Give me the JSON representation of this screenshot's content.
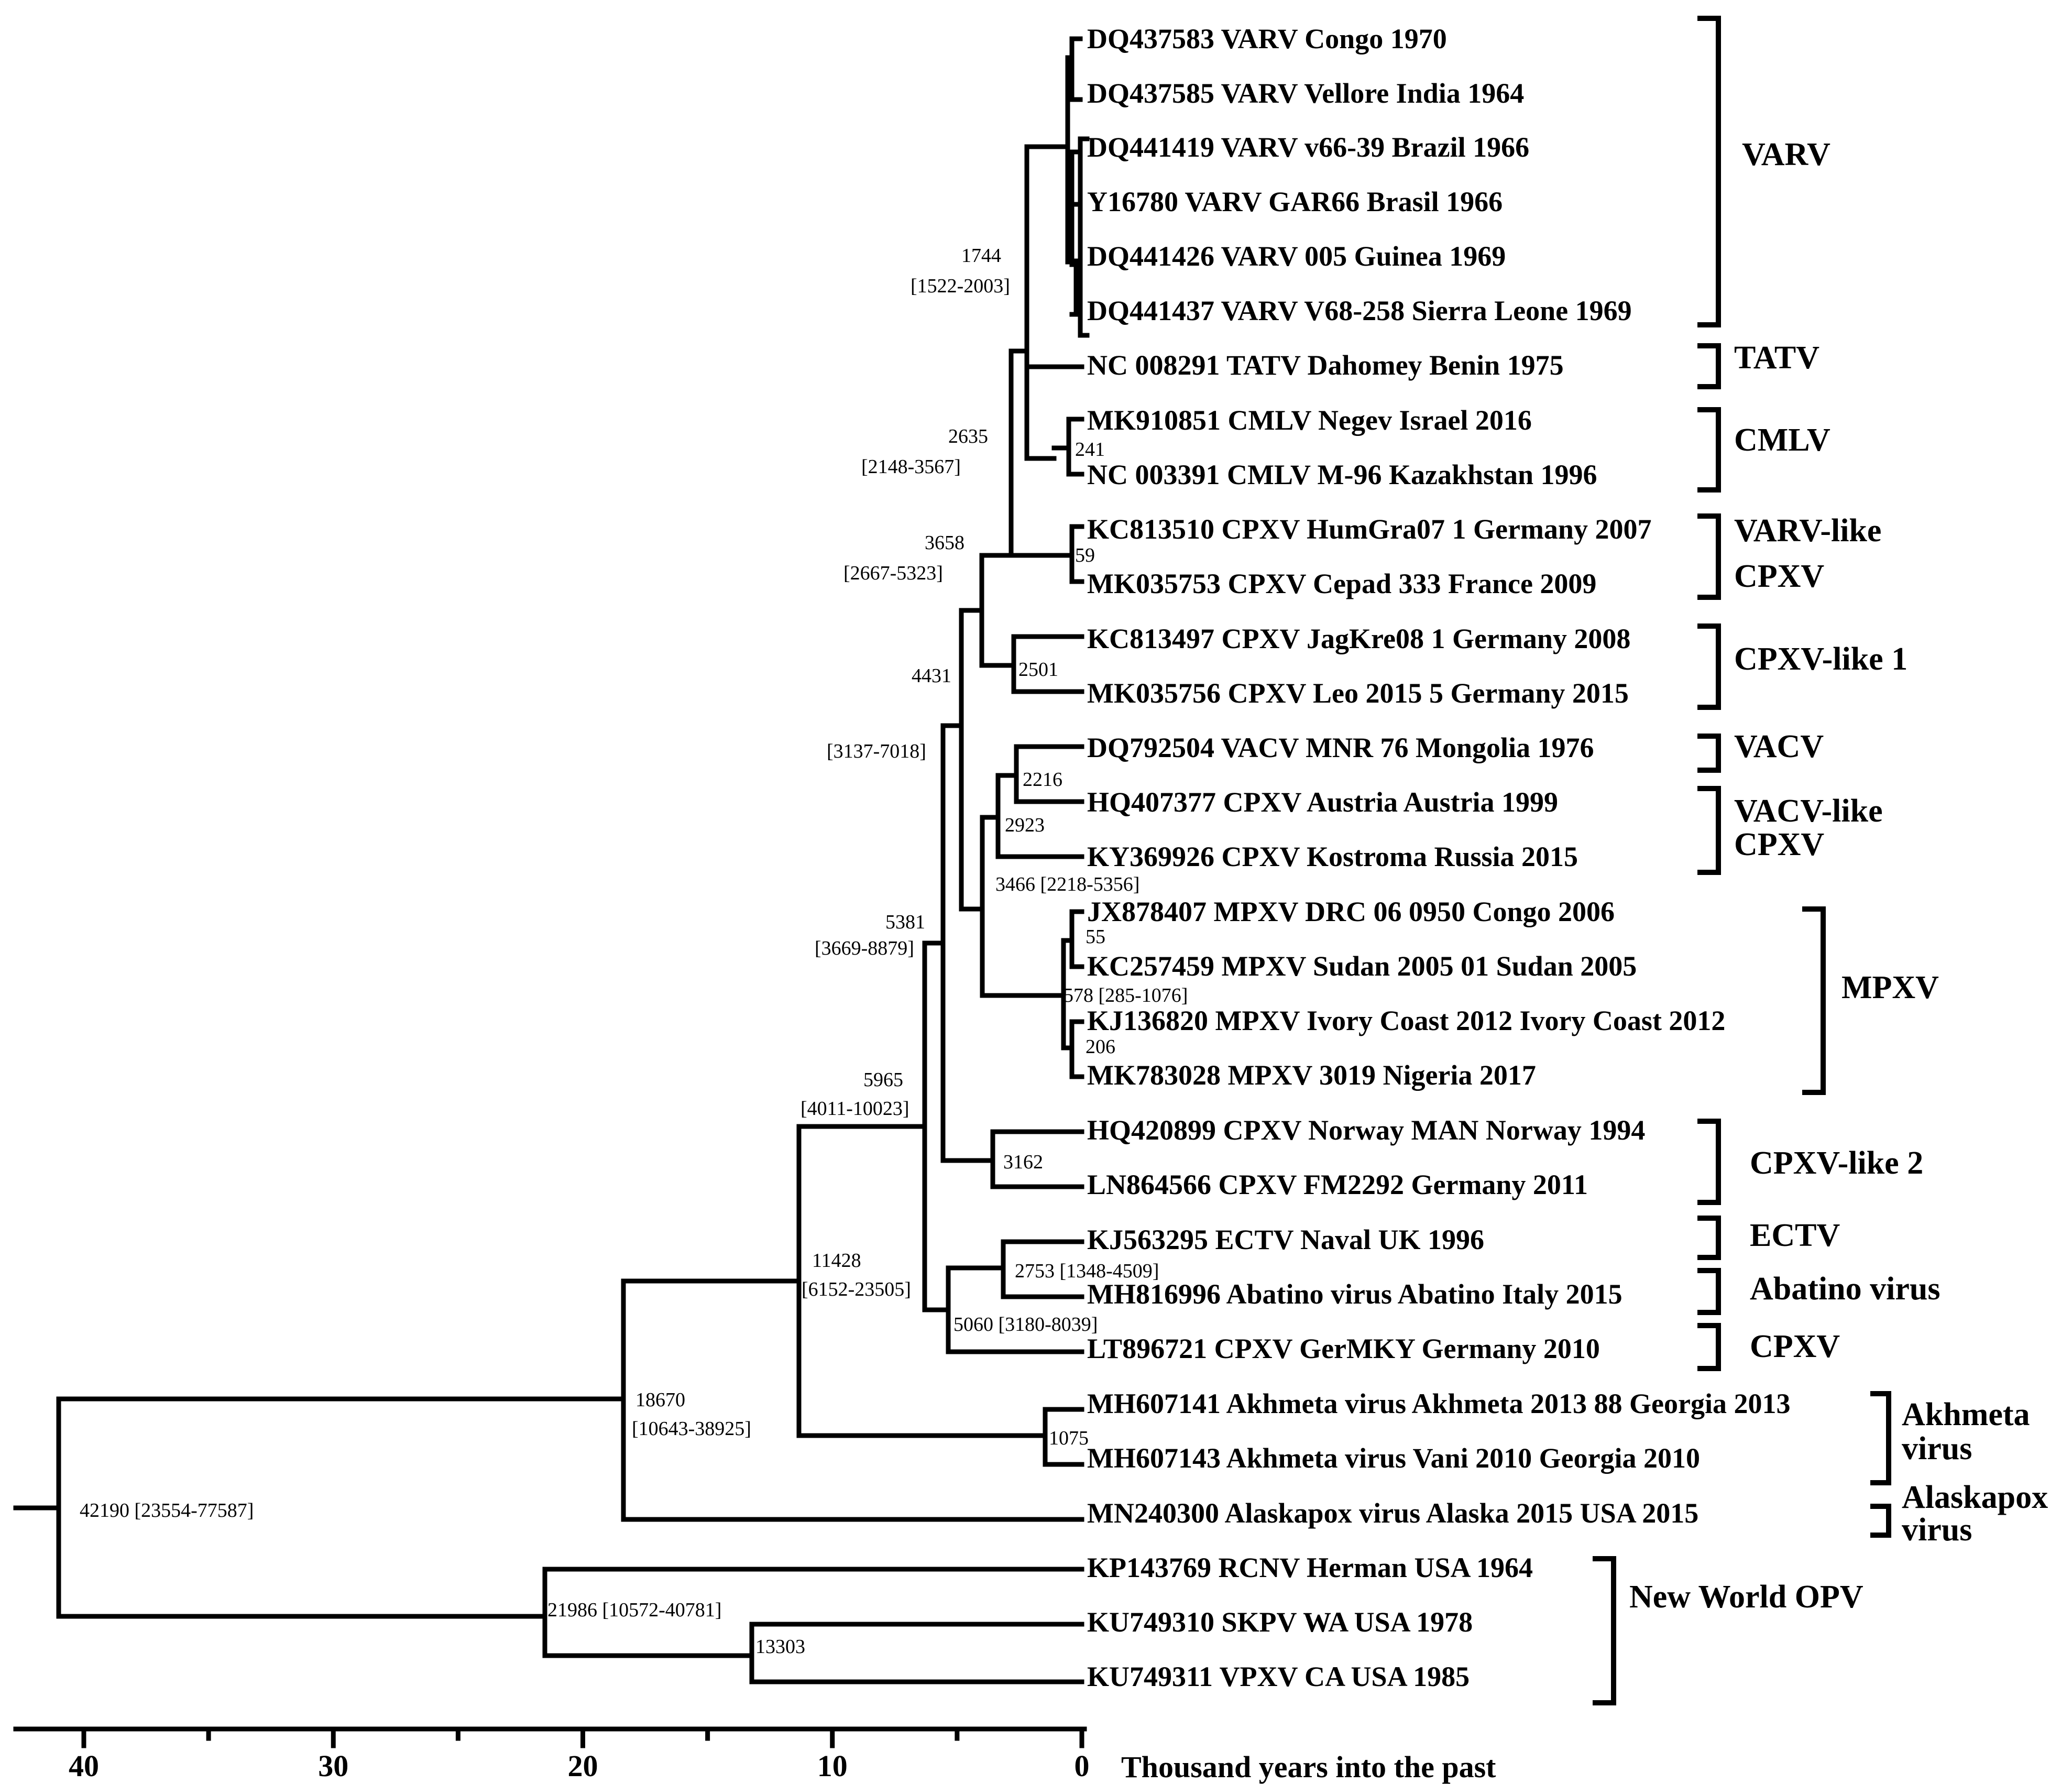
{
  "axis": {
    "label": "Thousand years into the past",
    "ticks": [
      "40",
      "30",
      "20",
      "10",
      "0"
    ],
    "tick_values": [
      40,
      30,
      20,
      10,
      0
    ]
  },
  "taxa": [
    "DQ437583 VARV Congo 1970",
    "DQ437585 VARV Vellore India 1964",
    "DQ441419 VARV v66-39 Brazil 1966",
    "Y16780 VARV GAR66 Brasil 1966",
    "DQ441426 VARV 005 Guinea 1969",
    "DQ441437 VARV V68-258 Sierra Leone 1969",
    "NC 008291 TATV Dahomey Benin 1975",
    "MK910851 CMLV Negev Israel 2016",
    "NC 003391 CMLV M-96 Kazakhstan 1996",
    "KC813510 CPXV HumGra07 1 Germany 2007",
    "MK035753 CPXV Cepad 333 France 2009",
    "KC813497 CPXV JagKre08 1 Germany 2008",
    "MK035756 CPXV Leo 2015 5 Germany 2015",
    "DQ792504 VACV MNR 76 Mongolia 1976",
    "HQ407377 CPXV Austria Austria 1999",
    "KY369926 CPXV Kostroma Russia 2015",
    "JX878407 MPXV DRC 06 0950 Congo 2006",
    "KC257459 MPXV Sudan 2005 01 Sudan 2005",
    "KJ136820 MPXV Ivory Coast 2012 Ivory Coast 2012",
    "MK783028 MPXV 3019 Nigeria 2017",
    "HQ420899 CPXV Norway MAN Norway 1994",
    "LN864566 CPXV FM2292 Germany 2011",
    "KJ563295 ECTV Naval UK 1996",
    "MH816996 Abatino virus Abatino Italy 2015",
    "LT896721 CPXV GerMKY Germany 2010",
    "MH607141 Akhmeta virus Akhmeta 2013 88 Georgia 2013",
    "MH607143 Akhmeta virus Vani 2010 Georgia 2010",
    "MN240300 Alaskapox virus Alaska 2015 USA 2015",
    "KP143769 RCNV Herman USA 1964",
    "KU749310 SKPV WA USA 1978",
    "KU749311 VPXV CA USA 1985"
  ],
  "node_labels": {
    "varv_age": "1744",
    "varv_hpd": "[1522-2003]",
    "n2635": "2635",
    "n2635_hpd": "[2148-3567]",
    "n3658": "3658",
    "n3658_hpd": "[2667-5323]",
    "n4431": "4431",
    "n4431_hpd": "[3137-7018]",
    "n5381": "5381",
    "n5381_hpd": "[3669-8879]",
    "n5965": "5965",
    "n5965_hpd": "[4011-10023]",
    "n11428": "11428",
    "n11428_hpd": "[6152-23505]",
    "n18670": "18670",
    "n18670_hpd": "[10643-38925]",
    "root": "42190 [23554-77587]",
    "nw": "21986 [10572-40781]",
    "n13303": "13303",
    "cmlv": "241",
    "vcpxv": "59",
    "cpxv1": "2501",
    "n2216": "2216",
    "n2923": "2923",
    "n3466": "3466 [2218-5356]",
    "n55": "55",
    "n578": "578 [285-1076]",
    "n206": "206",
    "n3162": "3162",
    "n2753": "2753 [1348-4509]",
    "n5060": "5060 [3180-8039]",
    "n1075": "1075"
  },
  "clades": {
    "varv": "VARV",
    "tatv": "TATV",
    "cmlv": "CMLV",
    "varv_like_1": "VARV-like",
    "varv_like_2": "CPXV",
    "cpxv_like1": "CPXV-like 1",
    "vacv": "VACV",
    "vacv_like_1": "VACV-like",
    "vacv_like_2": "CPXV",
    "mpxv": "MPXV",
    "cpxv_like2": "CPXV-like 2",
    "ectv": "ECTV",
    "abatino": "Abatino virus",
    "cpxv": "CPXV",
    "akhmeta_1": "Akhmeta",
    "akhmeta_2": "virus",
    "alaskapox_1": "Alaskapox",
    "alaskapox_2": "virus",
    "nwopv": "New World OPV"
  }
}
